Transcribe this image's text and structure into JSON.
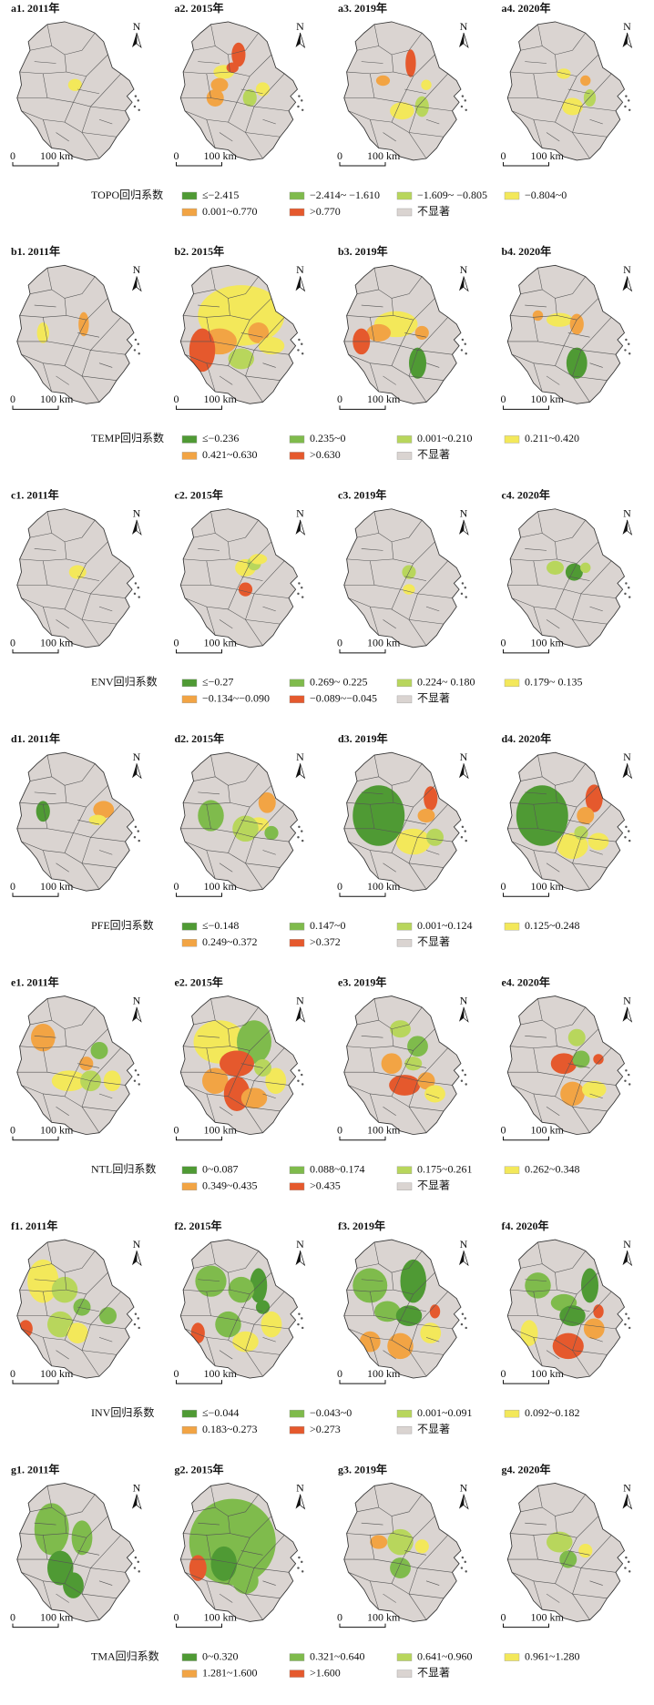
{
  "north_label": "N",
  "scale_labels": [
    "0",
    "100 km"
  ],
  "colors": [
    "#4f9a34",
    "#7fbb4c",
    "#b8d65c",
    "#f3e85a",
    "#f2a444",
    "#e5592d",
    "#dad4d1"
  ],
  "rows": [
    {
      "legend_title": "TOPO回归系数",
      "legend": [
        "≤−2.415",
        "−2.414~ −1.610",
        "−1.609~ −0.805",
        "−0.804~0",
        "0.001~0.770",
        ">0.770",
        "不显著"
      ],
      "maps": [
        "a1. 2011年",
        "a2. 2015年",
        "a3. 2019年",
        "a4. 2020年"
      ]
    },
    {
      "legend_title": "TEMP回归系数",
      "legend": [
        "≤−0.236",
        "0.235~0",
        "0.001~0.210",
        "0.211~0.420",
        "0.421~0.630",
        ">0.630",
        "不显著"
      ],
      "maps": [
        "b1. 2011年",
        "b2. 2015年",
        "b3. 2019年",
        "b4. 2020年"
      ]
    },
    {
      "legend_title": "ENV回归系数",
      "legend": [
        "≤−0.27",
        "0.269~ 0.225",
        "0.224~ 0.180",
        "0.179~ 0.135",
        "−0.134~−0.090",
        "−0.089~−0.045",
        "不显著"
      ],
      "maps": [
        "c1. 2011年",
        "c2. 2015年",
        "c3. 2019年",
        "c4. 2020年"
      ]
    },
    {
      "legend_title": "PFE回归系数",
      "legend": [
        "≤−0.148",
        "0.147~0",
        "0.001~0.124",
        "0.125~0.248",
        "0.249~0.372",
        ">0.372",
        "不显著"
      ],
      "maps": [
        "d1. 2011年",
        "d2. 2015年",
        "d3. 2019年",
        "d4. 2020年"
      ]
    },
    {
      "legend_title": "NTL回归系数",
      "legend": [
        "0~0.087",
        "0.088~0.174",
        "0.175~0.261",
        "0.262~0.348",
        "0.349~0.435",
        ">0.435",
        "不显著"
      ],
      "maps": [
        "e1. 2011年",
        "e2. 2015年",
        "e3. 2019年",
        "e4. 2020年"
      ]
    },
    {
      "legend_title": "INV回归系数",
      "legend": [
        "≤−0.044",
        "−0.043~0",
        "0.001~0.091",
        "0.092~0.182",
        "0.183~0.273",
        ">0.273",
        "不显著"
      ],
      "maps": [
        "f1. 2011年",
        "f2. 2015年",
        "f3. 2019年",
        "f4. 2020年"
      ]
    },
    {
      "legend_title": "TMA回归系数",
      "legend": [
        "0~0.320",
        "0.321~0.640",
        "0.641~0.960",
        "0.961~1.280",
        "1.281~1.600",
        ">1.600",
        "不显著"
      ],
      "maps": [
        "g1. 2011年",
        "g2. 2015年",
        "g3. 2019年",
        "g4. 2020年"
      ]
    }
  ]
}
